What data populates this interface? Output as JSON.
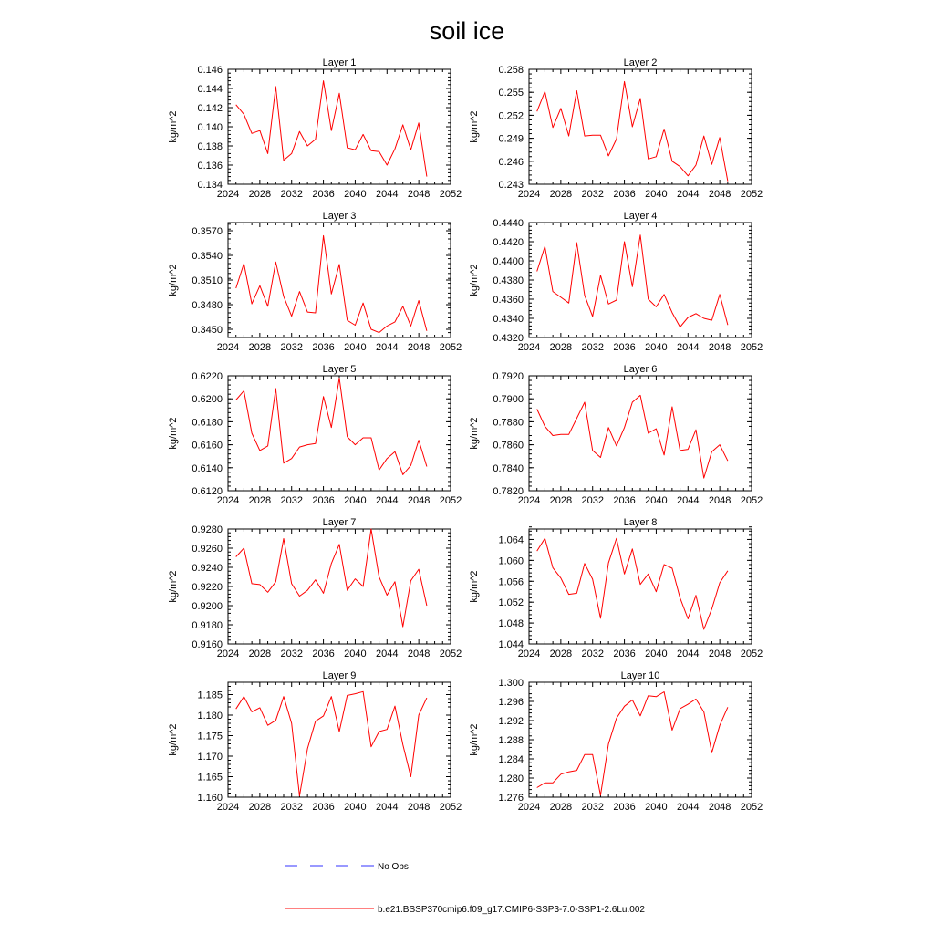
{
  "figure": {
    "title": "soil ice",
    "legend": {
      "obs_label": "No Obs",
      "obs_color": "#3333ff",
      "model_label": "b.e21.BSSP370cmip6.f09_g17.CMIP6-SSP3-7.0-SSP1-2.6Lu.002",
      "model_color": "#ff0000"
    }
  },
  "chart_data": [
    {
      "type": "line",
      "title": "Layer 1",
      "ylabel": "kg/m^2",
      "xlim": [
        2024,
        2052
      ],
      "xticks": [
        2024,
        2028,
        2032,
        2036,
        2040,
        2044,
        2048,
        2052
      ],
      "ylim": [
        0.134,
        0.146
      ],
      "yticks": [
        "0.134",
        "0.136",
        "0.138",
        "0.140",
        "0.142",
        "0.144",
        "0.146"
      ],
      "x": [
        2025,
        2026,
        2027,
        2028,
        2029,
        2030,
        2031,
        2032,
        2033,
        2034,
        2035,
        2036,
        2037,
        2038,
        2039,
        2040,
        2041,
        2042,
        2043,
        2044,
        2045,
        2046,
        2047,
        2048,
        2049
      ],
      "series": [
        {
          "values": [
            0.1423,
            0.1413,
            0.1393,
            0.1396,
            0.1372,
            0.1442,
            0.1365,
            0.1372,
            0.1395,
            0.138,
            0.1387,
            0.1448,
            0.1396,
            0.1435,
            0.1378,
            0.1376,
            0.1392,
            0.1375,
            0.1374,
            0.136,
            0.1377,
            0.1402,
            0.1376,
            0.1404,
            0.1348
          ]
        }
      ]
    },
    {
      "type": "line",
      "title": "Layer 2",
      "ylabel": "kg/m^2",
      "xlim": [
        2024,
        2052
      ],
      "xticks": [
        2024,
        2028,
        2032,
        2036,
        2040,
        2044,
        2048,
        2052
      ],
      "ylim": [
        0.243,
        0.258
      ],
      "yticks": [
        "0.243",
        "0.246",
        "0.249",
        "0.252",
        "0.255",
        "0.258"
      ],
      "x": [
        2025,
        2026,
        2027,
        2028,
        2029,
        2030,
        2031,
        2032,
        2033,
        2034,
        2035,
        2036,
        2037,
        2038,
        2039,
        2040,
        2041,
        2042,
        2043,
        2044,
        2045,
        2046,
        2047,
        2048,
        2049
      ],
      "series": [
        {
          "values": [
            0.2525,
            0.2551,
            0.2504,
            0.2529,
            0.2493,
            0.2552,
            0.2493,
            0.2494,
            0.2494,
            0.2467,
            0.2489,
            0.2564,
            0.2505,
            0.2542,
            0.2463,
            0.2466,
            0.2502,
            0.246,
            0.2453,
            0.2441,
            0.2455,
            0.2493,
            0.2456,
            0.2491,
            0.2434
          ]
        }
      ]
    },
    {
      "type": "line",
      "title": "Layer 3",
      "ylabel": "kg/m^2",
      "xlim": [
        2024,
        2052
      ],
      "xticks": [
        2024,
        2028,
        2032,
        2036,
        2040,
        2044,
        2048,
        2052
      ],
      "ylim": [
        0.344,
        0.358
      ],
      "yticks": [
        "0.3450",
        "0.3480",
        "0.3510",
        "0.3540",
        "0.3570"
      ],
      "x": [
        2025,
        2026,
        2027,
        2028,
        2029,
        2030,
        2031,
        2032,
        2033,
        2034,
        2035,
        2036,
        2037,
        2038,
        2039,
        2040,
        2041,
        2042,
        2043,
        2044,
        2045,
        2046,
        2047,
        2048,
        2049
      ],
      "series": [
        {
          "values": [
            0.35,
            0.353,
            0.3481,
            0.3503,
            0.3478,
            0.3532,
            0.349,
            0.3466,
            0.3496,
            0.3471,
            0.347,
            0.3564,
            0.3493,
            0.3529,
            0.3461,
            0.3455,
            0.3482,
            0.345,
            0.3446,
            0.3454,
            0.3459,
            0.3478,
            0.3454,
            0.3485,
            0.3448
          ]
        }
      ]
    },
    {
      "type": "line",
      "title": "Layer 4",
      "ylabel": "kg/m^2",
      "xlim": [
        2024,
        2052
      ],
      "xticks": [
        2024,
        2028,
        2032,
        2036,
        2040,
        2044,
        2048,
        2052
      ],
      "ylim": [
        0.432,
        0.444
      ],
      "yticks": [
        "0.4320",
        "0.4340",
        "0.4360",
        "0.4380",
        "0.4400",
        "0.4420",
        "0.4440"
      ],
      "x": [
        2025,
        2026,
        2027,
        2028,
        2029,
        2030,
        2031,
        2032,
        2033,
        2034,
        2035,
        2036,
        2037,
        2038,
        2039,
        2040,
        2041,
        2042,
        2043,
        2044,
        2045,
        2046,
        2047,
        2048,
        2049
      ],
      "series": [
        {
          "values": [
            0.4389,
            0.4415,
            0.4368,
            0.4362,
            0.4356,
            0.4419,
            0.4364,
            0.4342,
            0.4385,
            0.4355,
            0.4359,
            0.442,
            0.4373,
            0.4427,
            0.436,
            0.4352,
            0.4365,
            0.4346,
            0.4331,
            0.4341,
            0.4345,
            0.434,
            0.4338,
            0.4365,
            0.4333
          ]
        }
      ]
    },
    {
      "type": "line",
      "title": "Layer 5",
      "ylabel": "kg/m^2",
      "xlim": [
        2024,
        2052
      ],
      "xticks": [
        2024,
        2028,
        2032,
        2036,
        2040,
        2044,
        2048,
        2052
      ],
      "ylim": [
        0.612,
        0.622
      ],
      "yticks": [
        "0.6120",
        "0.6140",
        "0.6160",
        "0.6180",
        "0.6200",
        "0.6220"
      ],
      "x": [
        2025,
        2026,
        2027,
        2028,
        2029,
        2030,
        2031,
        2032,
        2033,
        2034,
        2035,
        2036,
        2037,
        2038,
        2039,
        2040,
        2041,
        2042,
        2043,
        2044,
        2045,
        2046,
        2047,
        2048,
        2049
      ],
      "series": [
        {
          "values": [
            0.6199,
            0.6207,
            0.617,
            0.6155,
            0.6159,
            0.6209,
            0.6144,
            0.6148,
            0.6158,
            0.616,
            0.6161,
            0.6202,
            0.6175,
            0.6218,
            0.6167,
            0.616,
            0.6166,
            0.6166,
            0.6138,
            0.6148,
            0.6154,
            0.6134,
            0.6142,
            0.6164,
            0.6141
          ]
        }
      ]
    },
    {
      "type": "line",
      "title": "Layer 6",
      "ylabel": "kg/m^2",
      "xlim": [
        2024,
        2052
      ],
      "xticks": [
        2024,
        2028,
        2032,
        2036,
        2040,
        2044,
        2048,
        2052
      ],
      "ylim": [
        0.782,
        0.792
      ],
      "yticks": [
        "0.7820",
        "0.7840",
        "0.7860",
        "0.7880",
        "0.7900",
        "0.7920"
      ],
      "x": [
        2025,
        2026,
        2027,
        2028,
        2029,
        2030,
        2031,
        2032,
        2033,
        2034,
        2035,
        2036,
        2037,
        2038,
        2039,
        2040,
        2041,
        2042,
        2043,
        2044,
        2045,
        2046,
        2047,
        2048,
        2049
      ],
      "series": [
        {
          "values": [
            0.7891,
            0.7876,
            0.7868,
            0.7869,
            0.7869,
            0.7883,
            0.7897,
            0.7855,
            0.7849,
            0.7875,
            0.7859,
            0.7875,
            0.7897,
            0.7903,
            0.787,
            0.7874,
            0.7851,
            0.7893,
            0.7855,
            0.7856,
            0.7873,
            0.7831,
            0.7854,
            0.786,
            0.7846
          ]
        }
      ]
    },
    {
      "type": "line",
      "title": "Layer 7",
      "ylabel": "kg/m^2",
      "xlim": [
        2024,
        2052
      ],
      "xticks": [
        2024,
        2028,
        2032,
        2036,
        2040,
        2044,
        2048,
        2052
      ],
      "ylim": [
        0.916,
        0.928
      ],
      "yticks": [
        "0.9160",
        "0.9180",
        "0.9200",
        "0.9220",
        "0.9240",
        "0.9260",
        "0.9280"
      ],
      "x": [
        2025,
        2026,
        2027,
        2028,
        2029,
        2030,
        2031,
        2032,
        2033,
        2034,
        2035,
        2036,
        2037,
        2038,
        2039,
        2040,
        2041,
        2042,
        2043,
        2044,
        2045,
        2046,
        2047,
        2048,
        2049
      ],
      "series": [
        {
          "values": [
            0.9251,
            0.926,
            0.9223,
            0.9222,
            0.9214,
            0.9225,
            0.927,
            0.9223,
            0.921,
            0.9216,
            0.9227,
            0.9213,
            0.9244,
            0.9264,
            0.9216,
            0.9228,
            0.922,
            0.928,
            0.923,
            0.9211,
            0.9225,
            0.9178,
            0.9226,
            0.9238,
            0.92
          ]
        }
      ]
    },
    {
      "type": "line",
      "title": "Layer 8",
      "ylabel": "kg/m^2",
      "xlim": [
        2024,
        2052
      ],
      "xticks": [
        2024,
        2028,
        2032,
        2036,
        2040,
        2044,
        2048,
        2052
      ],
      "ylim": [
        1.044,
        1.066
      ],
      "yticks": [
        "1.044",
        "1.048",
        "1.052",
        "1.056",
        "1.060",
        "1.064"
      ],
      "x": [
        2025,
        2026,
        2027,
        2028,
        2029,
        2030,
        2031,
        2032,
        2033,
        2034,
        2035,
        2036,
        2037,
        2038,
        2039,
        2040,
        2041,
        2042,
        2043,
        2044,
        2045,
        2046,
        2047,
        2048,
        2049
      ],
      "series": [
        {
          "values": [
            1.0618,
            1.0642,
            1.0586,
            1.0566,
            1.0535,
            1.0537,
            1.0594,
            1.0564,
            1.0489,
            1.0595,
            1.0642,
            1.0574,
            1.0622,
            1.0554,
            1.0574,
            1.054,
            1.0592,
            1.0585,
            1.0528,
            1.0488,
            1.0533,
            1.0468,
            1.0507,
            1.0557,
            1.058
          ]
        }
      ]
    },
    {
      "type": "line",
      "title": "Layer 9",
      "ylabel": "kg/m^2",
      "xlim": [
        2024,
        2052
      ],
      "xticks": [
        2024,
        2028,
        2032,
        2036,
        2040,
        2044,
        2048,
        2052
      ],
      "ylim": [
        1.16,
        1.188
      ],
      "yticks": [
        "1.160",
        "1.165",
        "1.170",
        "1.175",
        "1.180",
        "1.185"
      ],
      "x": [
        2025,
        2026,
        2027,
        2028,
        2029,
        2030,
        2031,
        2032,
        2033,
        2034,
        2035,
        2036,
        2037,
        2038,
        2039,
        2040,
        2041,
        2042,
        2043,
        2044,
        2045,
        2046,
        2047,
        2048,
        2049
      ],
      "series": [
        {
          "values": [
            1.1815,
            1.1845,
            1.1808,
            1.1818,
            1.1775,
            1.1787,
            1.1845,
            1.178,
            1.1603,
            1.1718,
            1.1785,
            1.1798,
            1.1845,
            1.176,
            1.1848,
            1.1852,
            1.1857,
            1.1723,
            1.176,
            1.1765,
            1.1822,
            1.1728,
            1.165,
            1.18,
            1.1842
          ]
        }
      ]
    },
    {
      "type": "line",
      "title": "Layer 10",
      "ylabel": "kg/m^2",
      "xlim": [
        2024,
        2052
      ],
      "xticks": [
        2024,
        2028,
        2032,
        2036,
        2040,
        2044,
        2048,
        2052
      ],
      "ylim": [
        1.276,
        1.3
      ],
      "yticks": [
        "1.276",
        "1.280",
        "1.284",
        "1.288",
        "1.292",
        "1.296",
        "1.300"
      ],
      "x": [
        2025,
        2026,
        2027,
        2028,
        2029,
        2030,
        2031,
        2032,
        2033,
        2034,
        2035,
        2036,
        2037,
        2038,
        2039,
        2040,
        2041,
        2042,
        2043,
        2044,
        2045,
        2046,
        2047,
        2048,
        2049
      ],
      "series": [
        {
          "values": [
            1.278,
            1.279,
            1.279,
            1.2808,
            1.2813,
            1.2816,
            1.2849,
            1.2849,
            1.2764,
            1.2871,
            1.2925,
            1.295,
            1.2963,
            1.293,
            1.2972,
            1.297,
            1.298,
            1.29,
            1.2945,
            1.2954,
            1.2965,
            1.2938,
            1.2853,
            1.291,
            1.2948
          ]
        }
      ]
    }
  ]
}
